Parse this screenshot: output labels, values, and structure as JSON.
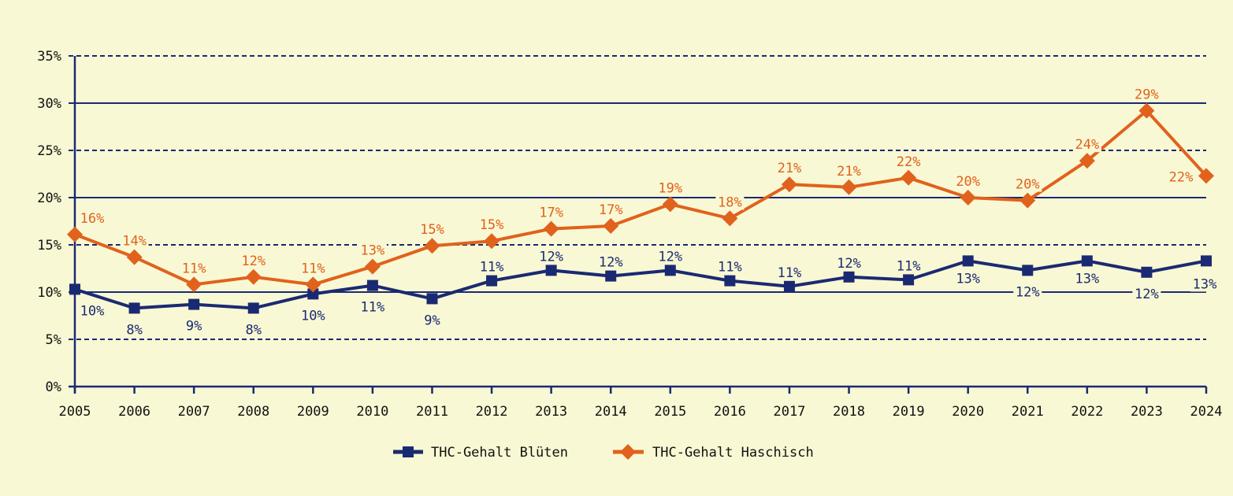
{
  "chart_data": {
    "type": "line",
    "title": "",
    "xlabel": "",
    "ylabel": "",
    "ylim": [
      0,
      35
    ],
    "yticks": [
      0,
      5,
      10,
      15,
      20,
      25,
      30,
      35
    ],
    "ytick_labels": [
      "0%",
      "5%",
      "10%",
      "15%",
      "20%",
      "25%",
      "30%",
      "35%"
    ],
    "x": [
      "2005",
      "2006",
      "2007",
      "2008",
      "2009",
      "2010",
      "2011",
      "2012",
      "2013",
      "2014",
      "2015",
      "2016",
      "2017",
      "2018",
      "2019",
      "2020",
      "2021",
      "2022",
      "2023",
      "2024"
    ],
    "grid": "horizontal (solid at 10/20/30, dashed at 5/15/25/35)",
    "legend_position": "bottom-center",
    "series": [
      {
        "name": "THC-Gehalt Blüten",
        "color": "#1a2a72",
        "marker": "square",
        "values": [
          10.3,
          8.3,
          8.7,
          8.3,
          9.8,
          10.7,
          9.3,
          11.2,
          12.3,
          11.7,
          12.3,
          11.2,
          10.6,
          11.6,
          11.3,
          13.3,
          12.3,
          13.3,
          12.1,
          13.3
        ],
        "labels": [
          "10%",
          "8%",
          "9%",
          "8%",
          "10%",
          "11%",
          "9%",
          "11%",
          "12%",
          "12%",
          "12%",
          "11%",
          "11%",
          "12%",
          "11%",
          "13%",
          "12%",
          "13%",
          "12%",
          "13%"
        ]
      },
      {
        "name": "THC-Gehalt Haschisch",
        "color": "#e0621d",
        "marker": "diamond",
        "values": [
          16.1,
          13.7,
          10.8,
          11.6,
          10.8,
          12.7,
          14.9,
          15.4,
          16.7,
          17.0,
          19.3,
          17.8,
          21.4,
          21.1,
          22.1,
          20.0,
          19.7,
          23.9,
          29.2,
          22.3
        ],
        "labels": [
          "16%",
          "14%",
          "11%",
          "12%",
          "11%",
          "13%",
          "15%",
          "15%",
          "17%",
          "17%",
          "19%",
          "18%",
          "21%",
          "21%",
          "22%",
          "20%",
          "20%",
          "24%",
          "29%",
          "22%"
        ]
      }
    ]
  },
  "colors": {
    "background": "#f9f8d4",
    "axis": "#1a2a72"
  }
}
